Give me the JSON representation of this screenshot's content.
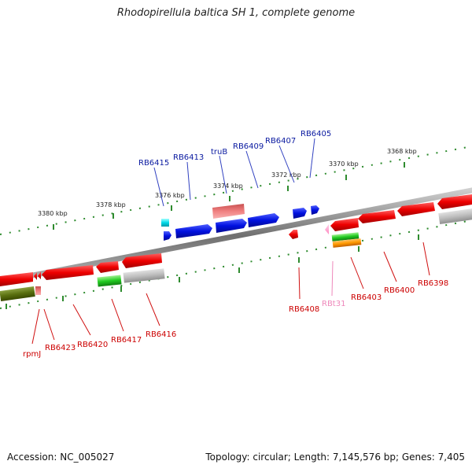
{
  "title": "Rhodopirellula baltica SH 1, complete genome",
  "footer": {
    "accession": "Accession: NC_005027",
    "summary": "Topology: circular; Length: 7,145,576 bp; Genes: 7,405"
  },
  "colors": {
    "backbone": "#8a8a8a",
    "tick": "#2e8b2e",
    "forward_label": "#0a1aa0",
    "reverse_label": "#cc0000",
    "forward_gene": "#0010e0",
    "reverse_gene": "#ee0000",
    "rna_gene": "#ff99cc",
    "rna_label": "#ee88bb"
  },
  "scale_labels": [
    "3368 kbp",
    "3370 kbp",
    "3372 kbp",
    "3374 kbp",
    "3376 kbp",
    "3378 kbp",
    "3380 kbp"
  ],
  "forward_labels": [
    "RB6415",
    "RB6413",
    "truB",
    "RB6409",
    "RB6407",
    "RB6405"
  ],
  "reverse_labels": [
    "rpmJ",
    "RB6423",
    "RB6420",
    "RB6417",
    "RB6416",
    "RB6408",
    "RBt31",
    "RB6403",
    "RB6400",
    "RB6398"
  ]
}
